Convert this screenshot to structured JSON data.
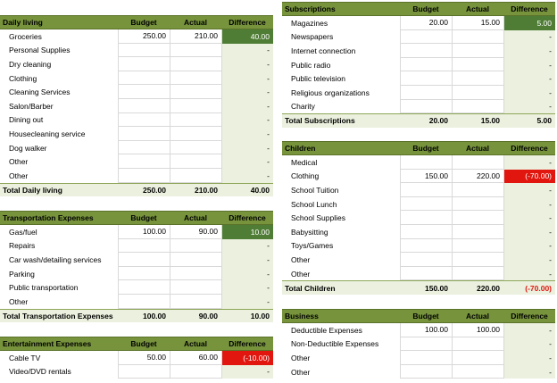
{
  "colors": {
    "header_bg": "#77933c",
    "total_bg": "#ebf1de",
    "positive_bg": "#4f7d35",
    "negative_bg": "#e0160f"
  },
  "columns": {
    "budget": "Budget",
    "actual": "Actual",
    "difference": "Difference"
  },
  "sections": {
    "daily_living": {
      "title": "Daily living",
      "rows": [
        {
          "label": "Groceries",
          "budget": "250.00",
          "actual": "210.00",
          "difference": "40.00"
        },
        {
          "label": "Personal Supplies",
          "budget": "",
          "actual": "",
          "difference": "-"
        },
        {
          "label": "Dry cleaning",
          "budget": "",
          "actual": "",
          "difference": "-"
        },
        {
          "label": "Clothing",
          "budget": "",
          "actual": "",
          "difference": "-"
        },
        {
          "label": "Cleaning Services",
          "budget": "",
          "actual": "",
          "difference": "-"
        },
        {
          "label": "Salon/Barber",
          "budget": "",
          "actual": "",
          "difference": "-"
        },
        {
          "label": "Dining out",
          "budget": "",
          "actual": "",
          "difference": "-"
        },
        {
          "label": "Housecleaning service",
          "budget": "",
          "actual": "",
          "difference": "-"
        },
        {
          "label": "Dog walker",
          "budget": "",
          "actual": "",
          "difference": "-"
        },
        {
          "label": "Other",
          "budget": "",
          "actual": "",
          "difference": "-"
        },
        {
          "label": "Other",
          "budget": "",
          "actual": "",
          "difference": "-"
        }
      ],
      "total": {
        "label": "Total Daily living",
        "budget": "250.00",
        "actual": "210.00",
        "difference": "40.00"
      }
    },
    "transportation": {
      "title": "Transportation Expenses",
      "rows": [
        {
          "label": "Gas/fuel",
          "budget": "100.00",
          "actual": "90.00",
          "difference": "10.00"
        },
        {
          "label": "Repairs",
          "budget": "",
          "actual": "",
          "difference": "-"
        },
        {
          "label": "Car wash/detailing services",
          "budget": "",
          "actual": "",
          "difference": "-"
        },
        {
          "label": "Parking",
          "budget": "",
          "actual": "",
          "difference": "-"
        },
        {
          "label": "Public transportation",
          "budget": "",
          "actual": "",
          "difference": "-"
        },
        {
          "label": "Other",
          "budget": "",
          "actual": "",
          "difference": "-"
        }
      ],
      "total": {
        "label": "Total Transportation Expenses",
        "budget": "100.00",
        "actual": "90.00",
        "difference": "10.00"
      }
    },
    "entertainment": {
      "title": "Entertainment Expenses",
      "rows": [
        {
          "label": "Cable TV",
          "budget": "50.00",
          "actual": "60.00",
          "difference": "(-10.00)"
        },
        {
          "label": "Video/DVD rentals",
          "budget": "",
          "actual": "",
          "difference": "-"
        }
      ]
    },
    "subscriptions": {
      "title": "Subscriptions",
      "rows": [
        {
          "label": "Magazines",
          "budget": "20.00",
          "actual": "15.00",
          "difference": "5.00"
        },
        {
          "label": "Newspapers",
          "budget": "",
          "actual": "",
          "difference": "-"
        },
        {
          "label": "Internet connection",
          "budget": "",
          "actual": "",
          "difference": "-"
        },
        {
          "label": "Public radio",
          "budget": "",
          "actual": "",
          "difference": "-"
        },
        {
          "label": "Public television",
          "budget": "",
          "actual": "",
          "difference": "-"
        },
        {
          "label": "Religious organizations",
          "budget": "",
          "actual": "",
          "difference": "-"
        },
        {
          "label": "Charity",
          "budget": "",
          "actual": "",
          "difference": "-"
        }
      ],
      "total": {
        "label": "Total Subscriptions",
        "budget": "20.00",
        "actual": "15.00",
        "difference": "5.00"
      }
    },
    "children": {
      "title": "Children",
      "rows": [
        {
          "label": "Medical",
          "budget": "",
          "actual": "",
          "difference": "-"
        },
        {
          "label": "Clothing",
          "budget": "150.00",
          "actual": "220.00",
          "difference": "(-70.00)"
        },
        {
          "label": "School Tuition",
          "budget": "",
          "actual": "",
          "difference": "-"
        },
        {
          "label": "School Lunch",
          "budget": "",
          "actual": "",
          "difference": "-"
        },
        {
          "label": "School Supplies",
          "budget": "",
          "actual": "",
          "difference": "-"
        },
        {
          "label": "Babysitting",
          "budget": "",
          "actual": "",
          "difference": "-"
        },
        {
          "label": "Toys/Games",
          "budget": "",
          "actual": "",
          "difference": "-"
        },
        {
          "label": "Other",
          "budget": "",
          "actual": "",
          "difference": "-"
        },
        {
          "label": "Other",
          "budget": "",
          "actual": "",
          "difference": "-"
        }
      ],
      "total": {
        "label": "Total Children",
        "budget": "150.00",
        "actual": "220.00",
        "difference": "(-70.00)"
      }
    },
    "business": {
      "title": "Business",
      "rows": [
        {
          "label": "Deductible Expenses",
          "budget": "100.00",
          "actual": "100.00",
          "difference": "-"
        },
        {
          "label": "Non-Deductible Expenses",
          "budget": "",
          "actual": "",
          "difference": "-"
        },
        {
          "label": "Other",
          "budget": "",
          "actual": "",
          "difference": "-"
        },
        {
          "label": "Other",
          "budget": "",
          "actual": "",
          "difference": "-"
        }
      ]
    }
  }
}
